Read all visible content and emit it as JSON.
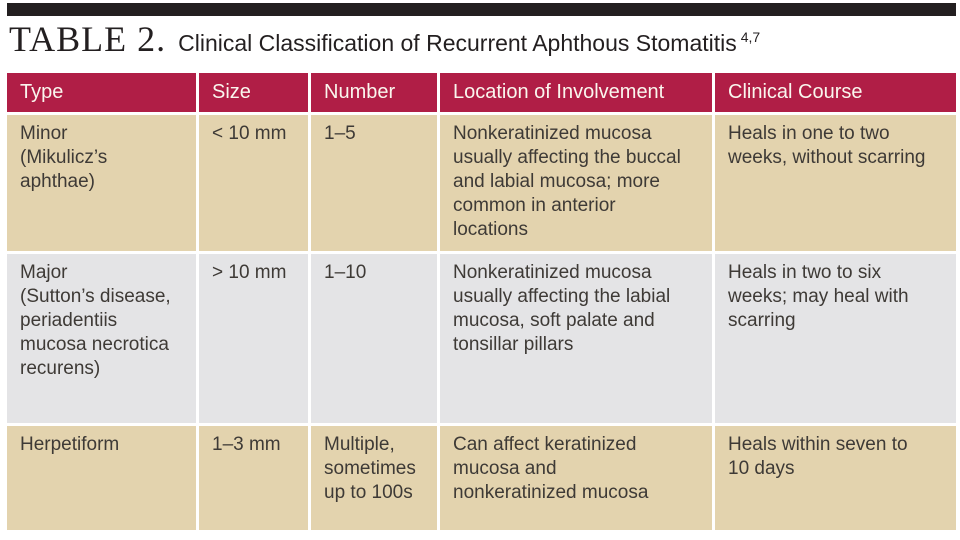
{
  "caption": {
    "label": "TABLE 2.",
    "title": "Clinical Classification of Recurrent Aphthous Stomatitis",
    "references": "4,7"
  },
  "colors": {
    "top_rule": "#231f20",
    "header_bg": "#b01e46",
    "header_text": "#faf6ee",
    "row_tan": "#e3d3ae",
    "row_gray": "#e4e4e6",
    "body_text": "#3e3a36",
    "title_text": "#231f20"
  },
  "table": {
    "columns": [
      "Type",
      "Size",
      "Number",
      "Location of Involvement",
      "Clinical Course"
    ],
    "rows": [
      {
        "type": "Minor\n(Mikulicz’s\naphthae)",
        "size": "< 10 mm",
        "number": "1–5",
        "location": "Nonkeratinized mucosa\nusually affecting the buccal\nand labial mucosa; more\ncommon in anterior\nlocations",
        "course": "Heals in one to two\nweeks, without scarring"
      },
      {
        "type": "Major\n(Sutton’s disease,\nperiadentiis\nmucosa necrotica\nrecurens)",
        "size": "> 10 mm",
        "number": "1–10",
        "location": "Nonkeratinized mucosa\nusually affecting the labial\nmucosa, soft palate and\ntonsillar pillars",
        "course": "Heals in two to six\nweeks; may heal with\nscarring"
      },
      {
        "type": "Herpetiform",
        "size": "1–3 mm",
        "number": "Multiple,\nsometimes\nup to 100s",
        "location": "Can affect keratinized\nmucosa and\nnonkeratinized mucosa",
        "course": "Heals within seven to\n10 days"
      }
    ]
  }
}
